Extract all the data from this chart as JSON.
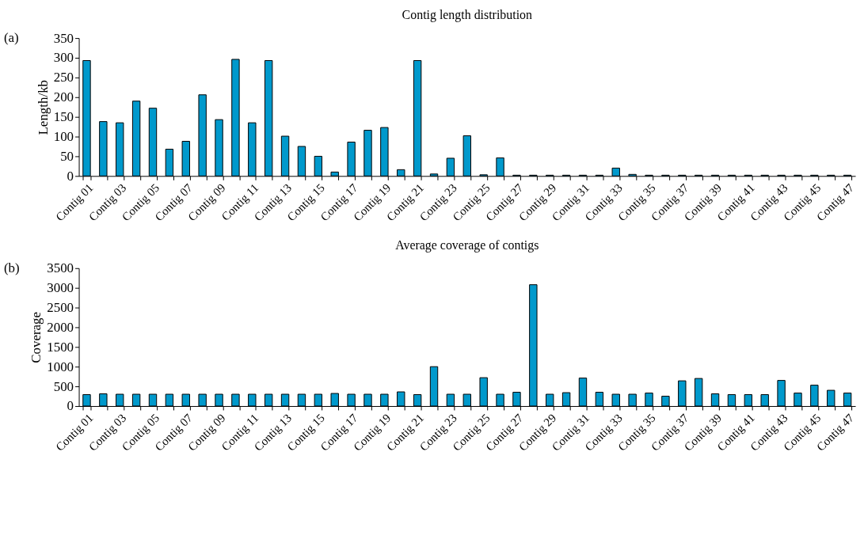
{
  "chart_data": [
    {
      "type": "bar",
      "title": "Contig length distribution",
      "ylabel": "Length/kb",
      "annotations": [
        "(a)"
      ],
      "color": "#0099cc",
      "categories": [
        "Contig 01",
        null,
        "Contig 03",
        null,
        "Contig 05",
        null,
        "Contig 07",
        null,
        "Contig 09",
        null,
        "Contig 11",
        null,
        "Contig 13",
        null,
        "Contig 15",
        null,
        "Contig 17",
        null,
        "Contig 19",
        null,
        "Contig 21",
        null,
        "Contig 23",
        null,
        "Contig 25",
        null,
        "Contig 27",
        null,
        "Contig 29",
        null,
        "Contig 31",
        null,
        "Contig 33",
        null,
        "Contig 35",
        null,
        "Contig 37",
        null,
        "Contig 39",
        null,
        "Contig 41",
        null,
        "Contig 43",
        null,
        "Contig 45",
        null,
        "Contig 47"
      ],
      "values": [
        293,
        138,
        135,
        190,
        172,
        68,
        88,
        206,
        143,
        296,
        135,
        293,
        101,
        75,
        50,
        10,
        86,
        116,
        123,
        16,
        293,
        5,
        45,
        102,
        3,
        46,
        2,
        2,
        2,
        2,
        2,
        2,
        20,
        4,
        2,
        2,
        2,
        2,
        2,
        2,
        2,
        2,
        2,
        2,
        2,
        2,
        2
      ],
      "ylim": [
        0,
        350
      ],
      "yticks": [
        0,
        50,
        100,
        150,
        200,
        250,
        300,
        350
      ]
    },
    {
      "type": "bar",
      "title": "Average coverage of contigs",
      "ylabel": "Coverage",
      "annotations": [
        "(b)"
      ],
      "color": "#0099cc",
      "categories": [
        "Contig 01",
        null,
        "Contig 03",
        null,
        "Contig 05",
        null,
        "Contig 07",
        null,
        "Contig 09",
        null,
        "Contig 11",
        null,
        "Contig 13",
        null,
        "Contig 15",
        null,
        "Contig 17",
        null,
        "Contig 19",
        null,
        "Contig 21",
        null,
        "Contig 23",
        null,
        "Contig 25",
        null,
        "Contig 27",
        null,
        "Contig 29",
        null,
        "Contig 31",
        null,
        "Contig 33",
        null,
        "Contig 35",
        null,
        "Contig 37",
        null,
        "Contig 39",
        null,
        "Contig 41",
        null,
        "Contig 43",
        null,
        "Contig 45",
        null,
        "Contig 47"
      ],
      "values": [
        290,
        310,
        300,
        300,
        300,
        300,
        300,
        300,
        300,
        300,
        300,
        300,
        300,
        300,
        300,
        320,
        300,
        300,
        300,
        360,
        290,
        1000,
        300,
        300,
        720,
        300,
        350,
        3080,
        300,
        340,
        710,
        350,
        300,
        300,
        330,
        250,
        640,
        700,
        310,
        290,
        290,
        290,
        650,
        330,
        530,
        400,
        330
      ],
      "ylim": [
        0,
        3500
      ],
      "yticks": [
        0,
        500,
        1000,
        1500,
        2000,
        2500,
        3000,
        3500
      ]
    }
  ]
}
